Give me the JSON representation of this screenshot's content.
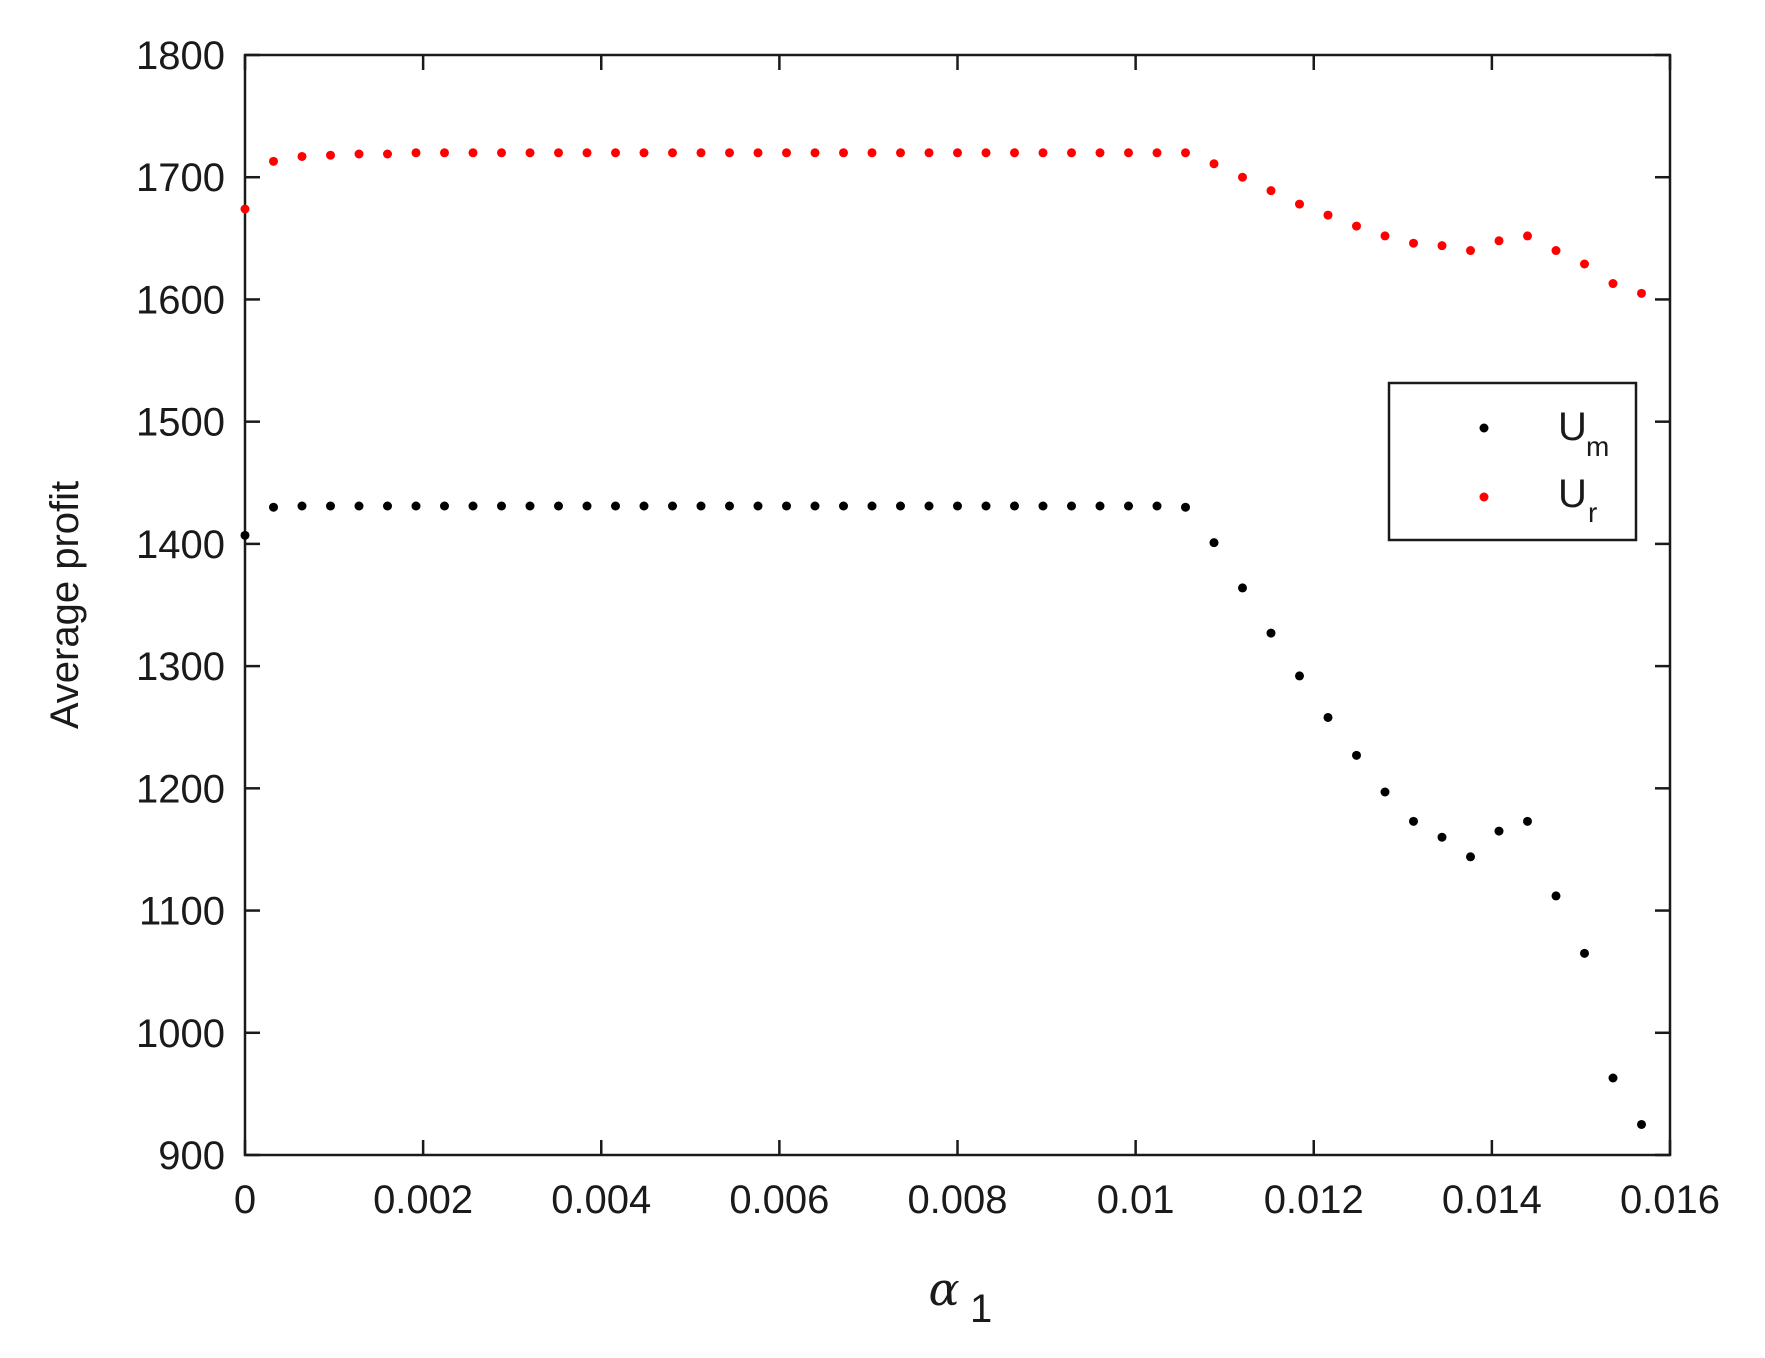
{
  "chart_data": {
    "type": "scatter",
    "xlabel": "α",
    "xlabel_sub": "1",
    "ylabel": "Average profit",
    "xlim": [
      0,
      0.016
    ],
    "ylim": [
      900,
      1800
    ],
    "xticks": [
      0,
      0.002,
      0.004,
      0.006,
      0.008,
      0.01,
      0.012,
      0.014,
      0.016
    ],
    "xtick_labels": [
      "0",
      "0.002",
      "0.004",
      "0.006",
      "0.008",
      "0.01",
      "0.012",
      "0.014",
      "0.016"
    ],
    "yticks": [
      900,
      1000,
      1100,
      1200,
      1300,
      1400,
      1500,
      1600,
      1700,
      1800
    ],
    "ytick_labels": [
      "900",
      "1000",
      "1100",
      "1200",
      "1300",
      "1400",
      "1500",
      "1600",
      "1700",
      "1800"
    ],
    "grid": false,
    "legend_position": "right",
    "series": [
      {
        "name": "U",
        "name_sub": "m",
        "color": "#000000",
        "x": [
          0,
          0.00032,
          0.00064,
          0.00096,
          0.00128,
          0.0016,
          0.00192,
          0.00224,
          0.00256,
          0.00288,
          0.0032,
          0.00352,
          0.00384,
          0.00416,
          0.00448,
          0.0048,
          0.00512,
          0.00544,
          0.00576,
          0.00608,
          0.0064,
          0.00672,
          0.00704,
          0.00736,
          0.00768,
          0.008,
          0.00832,
          0.00864,
          0.00896,
          0.00928,
          0.0096,
          0.00992,
          0.01024,
          0.01056,
          0.01088,
          0.0112,
          0.01152,
          0.01184,
          0.01216,
          0.01248,
          0.0128,
          0.01312,
          0.01344,
          0.01376,
          0.01408,
          0.0144,
          0.01472,
          0.01504,
          0.01536,
          0.01568
        ],
        "y": [
          1407,
          1430,
          1431,
          1431,
          1431,
          1431,
          1431,
          1431,
          1431,
          1431,
          1431,
          1431,
          1431,
          1431,
          1431,
          1431,
          1431,
          1431,
          1431,
          1431,
          1431,
          1431,
          1431,
          1431,
          1431,
          1431,
          1431,
          1431,
          1431,
          1431,
          1431,
          1431,
          1431,
          1430,
          1401,
          1364,
          1327,
          1292,
          1258,
          1227,
          1197,
          1173,
          1160,
          1144,
          1165,
          1173,
          1112,
          1065,
          963,
          925
        ]
      },
      {
        "name": "U",
        "name_sub": "r",
        "color": "#ff0000",
        "x": [
          0,
          0.00032,
          0.00064,
          0.00096,
          0.00128,
          0.0016,
          0.00192,
          0.00224,
          0.00256,
          0.00288,
          0.0032,
          0.00352,
          0.00384,
          0.00416,
          0.00448,
          0.0048,
          0.00512,
          0.00544,
          0.00576,
          0.00608,
          0.0064,
          0.00672,
          0.00704,
          0.00736,
          0.00768,
          0.008,
          0.00832,
          0.00864,
          0.00896,
          0.00928,
          0.0096,
          0.00992,
          0.01024,
          0.01056,
          0.01088,
          0.0112,
          0.01152,
          0.01184,
          0.01216,
          0.01248,
          0.0128,
          0.01312,
          0.01344,
          0.01376,
          0.01408,
          0.0144,
          0.01472,
          0.01504,
          0.01536,
          0.01568
        ],
        "y": [
          1674,
          1713,
          1717,
          1718,
          1719,
          1719,
          1720,
          1720,
          1720,
          1720,
          1720,
          1720,
          1720,
          1720,
          1720,
          1720,
          1720,
          1720,
          1720,
          1720,
          1720,
          1720,
          1720,
          1720,
          1720,
          1720,
          1720,
          1720,
          1720,
          1720,
          1720,
          1720,
          1720,
          1720,
          1711,
          1700,
          1689,
          1678,
          1669,
          1660,
          1652,
          1646,
          1644,
          1640,
          1648,
          1652,
          1640,
          1629,
          1613,
          1605
        ]
      }
    ]
  }
}
